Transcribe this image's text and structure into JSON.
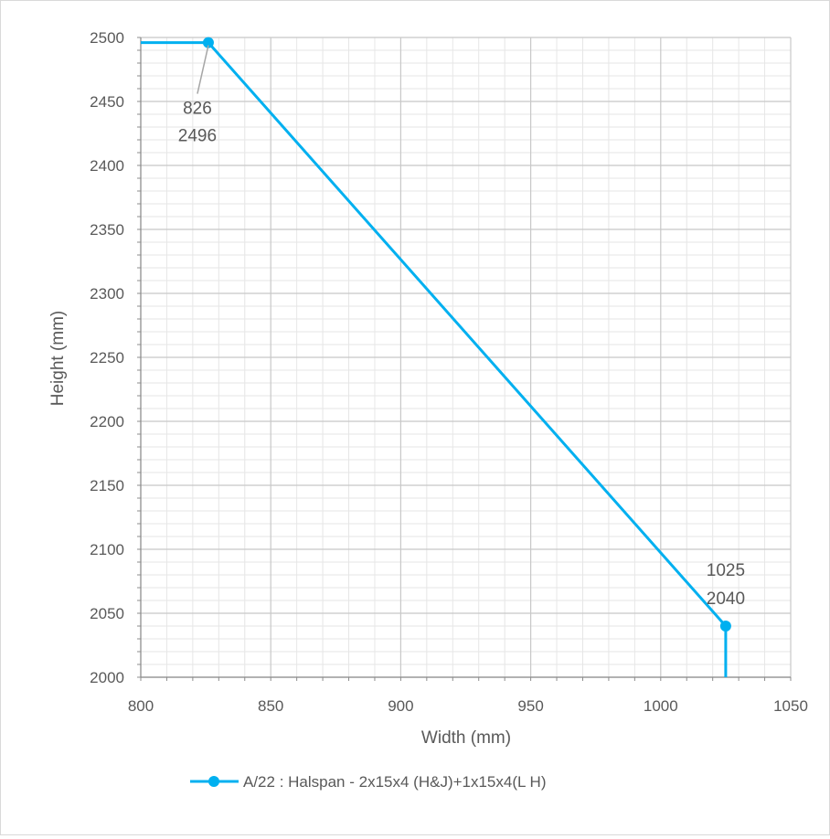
{
  "chart_data": {
    "type": "line",
    "title": "",
    "xlabel": "Width (mm)",
    "ylabel": "Height (mm)",
    "xlim": [
      800,
      1050
    ],
    "ylim": [
      2000,
      2500
    ],
    "x_major_step": 50,
    "y_major_step": 50,
    "x_minor_step": 10,
    "y_minor_step": 10,
    "grid": true,
    "legend_position": "bottom",
    "series": [
      {
        "name": "A/22 : Halspan - 2x15x4 (H&J)+1x15x4(L H)",
        "color": "#00b0f0",
        "x": [
          800,
          826,
          1025,
          1025
        ],
        "y": [
          2496,
          2496,
          2040,
          2000
        ],
        "markers": [
          {
            "x": 826,
            "y": 2496
          },
          {
            "x": 1025,
            "y": 2040
          }
        ]
      }
    ],
    "annotations": [
      {
        "line1": "826",
        "line2": "2496"
      },
      {
        "line1": "1025",
        "line2": "2040"
      }
    ],
    "xticks": [
      "800",
      "850",
      "900",
      "950",
      "1000",
      "1050"
    ],
    "yticks": [
      "2000",
      "2050",
      "2100",
      "2150",
      "2200",
      "2250",
      "2300",
      "2350",
      "2400",
      "2450",
      "2500"
    ]
  }
}
